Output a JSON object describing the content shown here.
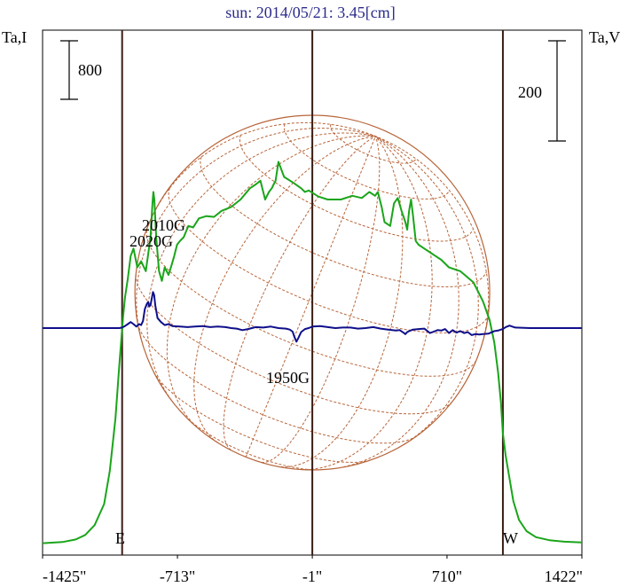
{
  "chart_data": {
    "type": "line",
    "title": "sun: 2014/05/21: 3.45[cm]",
    "left_axis_label": "Ta,I",
    "right_axis_label": "Ta,V",
    "left_scale_bar_label": "800",
    "right_scale_bar_label": "200",
    "x_tick_labels": [
      "-1425\"",
      "-713\"",
      "-1\"",
      "710\"",
      "1422\""
    ],
    "x_ticks": [
      -1425,
      -713,
      -1,
      710,
      1422
    ],
    "xlim": [
      -1425,
      1422
    ],
    "limb_markers": {
      "east": -1005,
      "center": -1,
      "west": 1005
    },
    "limb_labels": {
      "east": "E",
      "west": "W"
    },
    "annotations": [
      {
        "text": "2010G",
        "x": -820,
        "y_stokes_v": 55
      },
      {
        "text": "2020G",
        "x": -870,
        "y_stokes_v": 45
      },
      {
        "text": "1950G",
        "x": -60,
        "y_stokes_v": -25
      }
    ],
    "colors": {
      "intensity": "#1aa51a",
      "polarization": "#0f0f8a",
      "disk": "#b8653a",
      "markers": "#3a1e14",
      "title": "#2b2b8c"
    },
    "series": [
      {
        "name": "Ta,I",
        "axis": "left",
        "x": [
          -1425,
          -1320,
          -1250,
          -1200,
          -1150,
          -1100,
          -1070,
          -1040,
          -1020,
          -1000,
          -990,
          -975,
          -960,
          -945,
          -925,
          -905,
          -880,
          -855,
          -845,
          -840,
          -835,
          -825,
          -810,
          -795,
          -780,
          -760,
          -745,
          -730,
          -715,
          -700,
          -680,
          -655,
          -630,
          -600,
          -560,
          -520,
          -480,
          -430,
          -380,
          -330,
          -300,
          -275,
          -250,
          -230,
          -215,
          -205,
          -195,
          -180,
          -150,
          -100,
          -60,
          -40,
          -20,
          0,
          30,
          80,
          150,
          210,
          260,
          300,
          330,
          345,
          355,
          365,
          380,
          410,
          430,
          450,
          470,
          490,
          500,
          510,
          520,
          530,
          545,
          560,
          590,
          620,
          650,
          680,
          720,
          780,
          850,
          900,
          935,
          960,
          980,
          995,
          1005,
          1020,
          1040,
          1060,
          1090,
          1130,
          1180,
          1250,
          1330,
          1422
        ],
        "y": [
          40,
          55,
          90,
          150,
          280,
          560,
          1000,
          1700,
          2400,
          3050,
          3300,
          3550,
          3850,
          3950,
          3700,
          3780,
          3650,
          4100,
          4550,
          4700,
          4600,
          4100,
          3650,
          3520,
          3700,
          3600,
          3720,
          3850,
          4000,
          4050,
          4100,
          4250,
          4230,
          4350,
          4380,
          4370,
          4450,
          4500,
          4600,
          4750,
          4800,
          4850,
          4600,
          4700,
          4750,
          4800,
          4850,
          5100,
          4900,
          4820,
          4750,
          4700,
          4720,
          4690,
          4640,
          4600,
          4600,
          4650,
          4620,
          4700,
          4650,
          4700,
          4600,
          4500,
          4300,
          4250,
          4550,
          4620,
          4450,
          4300,
          4200,
          4450,
          4600,
          4400,
          4050,
          4000,
          3950,
          3900,
          3850,
          3800,
          3700,
          3650,
          3500,
          3250,
          3000,
          2700,
          2300,
          1900,
          1500,
          1200,
          900,
          600,
          350,
          200,
          120,
          80,
          60,
          50
        ]
      },
      {
        "name": "Ta,V",
        "axis": "right",
        "x": [
          -1425,
          -1300,
          -1150,
          -1070,
          -1040,
          -1020,
          -1005,
          -990,
          -975,
          -960,
          -945,
          -930,
          -915,
          -905,
          -895,
          -885,
          -875,
          -868,
          -862,
          -855,
          -848,
          -842,
          -836,
          -830,
          -818,
          -800,
          -780,
          -760,
          -740,
          -700,
          -660,
          -620,
          -580,
          -540,
          -500,
          -460,
          -430,
          -400,
          -370,
          -340,
          -300,
          -260,
          -220,
          -180,
          -140,
          -120,
          -105,
          -95,
          -85,
          -75,
          -60,
          -40,
          -20,
          0,
          40,
          80,
          120,
          160,
          200,
          240,
          280,
          320,
          360,
          400,
          440,
          460,
          480,
          490,
          500,
          510,
          530,
          560,
          590,
          620,
          640,
          660,
          680,
          700,
          720,
          740,
          760,
          780,
          800,
          820,
          840,
          860,
          880,
          900,
          930,
          960,
          980,
          995,
          1005,
          1020,
          1040,
          1070,
          1150,
          1300,
          1422
        ],
        "y": [
          0,
          0,
          0,
          0,
          0,
          0,
          1,
          4,
          8,
          12,
          8,
          3,
          8,
          6,
          14,
          38,
          48,
          52,
          43,
          46,
          60,
          72,
          66,
          45,
          20,
          12,
          6,
          8,
          4,
          3,
          2,
          3,
          4,
          2,
          3,
          2,
          0,
          -1,
          -4,
          -2,
          2,
          1,
          3,
          0,
          -1,
          -3,
          -7,
          -18,
          -27,
          -20,
          -8,
          -2,
          0,
          3,
          4,
          2,
          0,
          1,
          1,
          -1,
          0,
          2,
          -1,
          -3,
          -5,
          -4,
          -9,
          -12,
          -8,
          -6,
          -3,
          -2,
          -1,
          -10,
          -7,
          -4,
          -5,
          -2,
          -10,
          -4,
          -9,
          -6,
          -10,
          -8,
          -14,
          -12,
          -13,
          -12,
          -11,
          -6,
          -5,
          -3,
          -2,
          2,
          5,
          1,
          0,
          0,
          0
        ]
      }
    ]
  }
}
